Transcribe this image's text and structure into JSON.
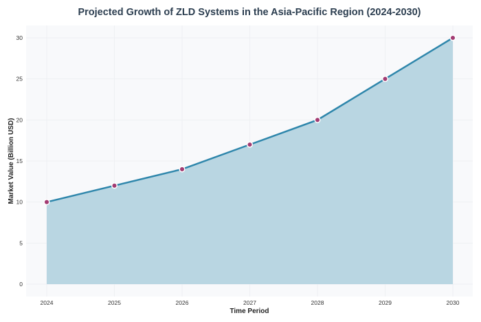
{
  "chart_data": {
    "type": "area",
    "title": "Projected Growth of ZLD Systems in the Asia-Pacific Region (2024-2030)",
    "xlabel": "Time Period",
    "ylabel": "Market Value (Billion USD)",
    "categories": [
      "2024",
      "2025",
      "2026",
      "2027",
      "2028",
      "2029",
      "2030"
    ],
    "values": [
      10,
      12,
      14,
      17,
      20,
      25,
      30
    ],
    "yticks": [
      0,
      5,
      10,
      15,
      20,
      25,
      30
    ],
    "ylim": [
      -1.5,
      31.5
    ],
    "grid": true,
    "colors": {
      "line": "#2e86ab",
      "fill": "#b9d6e2",
      "marker": "#a23b72",
      "background": "#f8f9fb",
      "title": "#2c3e50"
    }
  }
}
